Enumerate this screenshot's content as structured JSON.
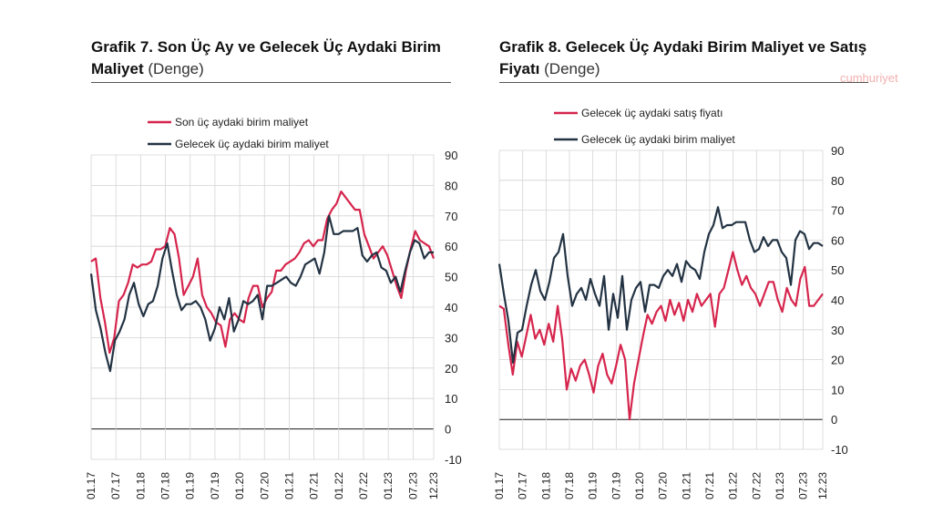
{
  "charts": [
    {
      "title_bold": "Grafik 7. Son Üç Ay ve Gelecek Üç Aydaki Birim Maliyet",
      "title_sub": "(Denge)",
      "chart_data": {
        "type": "line",
        "title": "Grafik 7. Son Üç Ay ve Gelecek Üç Aydaki Birim Maliyet (Denge)",
        "ylim": [
          -10,
          90
        ],
        "yticks": [
          90,
          80,
          70,
          60,
          50,
          40,
          30,
          20,
          10,
          0,
          -10
        ],
        "ticklabels": [
          "01.17",
          "07.17",
          "01.18",
          "07.18",
          "01.19",
          "07.19",
          "01.20",
          "07.20",
          "01.21",
          "07.21",
          "01.22",
          "07.22",
          "01.23",
          "07.23",
          "12.23"
        ],
        "x_start": "01.17",
        "x_end": "12.23",
        "months": 84,
        "grid": true,
        "legend": "top-left",
        "series": [
          {
            "name": "Son üç aydaki birim maliyet",
            "color": "#d6254d",
            "values": [
              55,
              56,
              43,
              35,
              25,
              30,
              42,
              44,
              48,
              54,
              53,
              54,
              54,
              55,
              59,
              59,
              60,
              66,
              64,
              56,
              44,
              47,
              50,
              56,
              44,
              40,
              38,
              35,
              34,
              27,
              36,
              38,
              36,
              35,
              43,
              47,
              47,
              40,
              43,
              45,
              52,
              52,
              54,
              55,
              56,
              58,
              61,
              62,
              60,
              62,
              62,
              69,
              72,
              74,
              78,
              76,
              74,
              72,
              72,
              64,
              60,
              56,
              58,
              60,
              57,
              52,
              47,
              43,
              52,
              59,
              65,
              62,
              61,
              60,
              56
            ]
          },
          {
            "name": "Gelecek üç aydaki birim maliyet",
            "color": "#233343",
            "values": [
              51,
              39,
              33,
              25,
              19,
              29,
              32,
              36,
              44,
              48,
              41,
              37,
              41,
              42,
              47,
              56,
              61,
              52,
              44,
              39,
              41,
              41,
              42,
              40,
              36,
              29,
              33,
              40,
              36,
              43,
              32,
              36,
              42,
              41,
              42,
              44,
              36,
              47,
              47,
              48,
              49,
              50,
              48,
              47,
              50,
              54,
              55,
              56,
              51,
              58,
              70,
              64,
              64,
              65,
              65,
              65,
              66,
              57,
              55,
              57,
              58,
              53,
              52,
              48,
              50,
              45,
              52,
              58,
              62,
              61,
              56,
              58,
              58
            ]
          }
        ]
      }
    },
    {
      "title_bold": "Grafik 8. Gelecek Üç Aydaki Birim Maliyet ve Satış Fiyatı",
      "title_sub": "(Denge)",
      "watermark": "cumhuriyet",
      "chart_data": {
        "type": "line",
        "title": "Grafik 8. Gelecek Üç Aydaki Birim Maliyet ve Satış Fiyatı (Denge)",
        "ylim": [
          -10,
          90
        ],
        "yticks": [
          90,
          80,
          70,
          60,
          50,
          40,
          30,
          20,
          10,
          0,
          -10
        ],
        "ticklabels": [
          "01.17",
          "07.17",
          "01.18",
          "07.18",
          "01.19",
          "07.19",
          "01.20",
          "07.20",
          "01.21",
          "07.21",
          "01.22",
          "07.22",
          "01.23",
          "07.23",
          "12.23"
        ],
        "x_start": "01.17",
        "x_end": "12.23",
        "months": 84,
        "grid": true,
        "legend": "top-left",
        "series": [
          {
            "name": "Gelecek üç aydaki satış fiyatı",
            "color": "#d6254d",
            "values": [
              38,
              37,
              25,
              15,
              26,
              21,
              28,
              35,
              27,
              30,
              25,
              32,
              26,
              38,
              27,
              10,
              17,
              13,
              18,
              20,
              15,
              9,
              18,
              22,
              15,
              12,
              18,
              25,
              20,
              0,
              12,
              20,
              28,
              35,
              32,
              36,
              38,
              33,
              40,
              35,
              39,
              33,
              40,
              36,
              42,
              38,
              40,
              42,
              31,
              42,
              44,
              50,
              56,
              50,
              45,
              48,
              44,
              42,
              38,
              42,
              46,
              46,
              40,
              36,
              44,
              40,
              38,
              47,
              51,
              38,
              38,
              40,
              42
            ]
          },
          {
            "name": "Gelecek üç aydaki birim maliyet",
            "color": "#233343",
            "values": [
              52,
              42,
              33,
              19,
              29,
              30,
              38,
              45,
              50,
              43,
              40,
              46,
              54,
              56,
              62,
              48,
              38,
              42,
              44,
              40,
              47,
              42,
              38,
              48,
              30,
              42,
              34,
              48,
              30,
              40,
              44,
              46,
              36,
              45,
              45,
              44,
              48,
              50,
              48,
              52,
              46,
              53,
              51,
              50,
              47,
              56,
              62,
              65,
              71,
              64,
              65,
              65,
              66,
              66,
              66,
              60,
              56,
              57,
              61,
              58,
              60,
              60,
              56,
              54,
              45,
              60,
              63,
              62,
              57,
              59,
              59,
              58
            ]
          }
        ]
      }
    }
  ]
}
